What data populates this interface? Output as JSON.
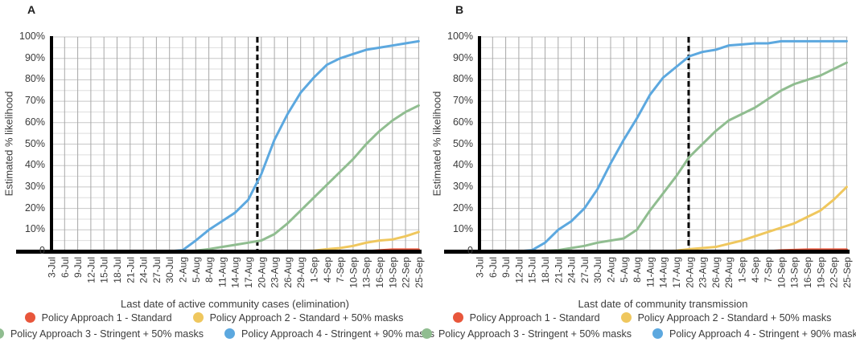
{
  "page": {
    "background": "#ffffff"
  },
  "colors": {
    "policy1_red": "#E8563B",
    "policy2_yellow": "#EFC75E",
    "policy3_green": "#90BD90",
    "policy4_blue": "#5CA8DF",
    "gridline_vertical": "#A8A8A8",
    "gridline_major": "#C7C7C7",
    "gridline_minor": "#DEDEDE",
    "axis": "#000000"
  },
  "chart_data": [
    {
      "type": "line",
      "title": "A",
      "xlabel": "Last date of active community cases (elimination)",
      "ylabel": "Estimated % likelihood",
      "ylim": [
        0,
        100
      ],
      "grid": true,
      "legend_position": "bottom",
      "y_tick_labels": [
        "100%",
        "90%",
        "80%",
        "70%",
        "60%",
        "50%",
        "40%",
        "30%",
        "20%",
        "10%",
        "0"
      ],
      "categories": [
        "3-Jul",
        "6-Jul",
        "9-Jul",
        "12-Jul",
        "15-Jul",
        "18-Jul",
        "21-Jul",
        "24-Jul",
        "27-Jul",
        "30-Jul",
        "2-Aug",
        "5-Aug",
        "8-Aug",
        "11-Aug",
        "14-Aug",
        "17-Aug",
        "20-Aug",
        "23-Aug",
        "26-Aug",
        "29-Aug",
        "1-Sep",
        "4-Sep",
        "7-Sep",
        "10-Sep",
        "13-Sep",
        "16-Sep",
        "19-Sep",
        "22-Sep",
        "25-Sep"
      ],
      "solid_vline_index": 0,
      "dashed_vline_index": 15.7,
      "series": [
        {
          "name": "Policy Approach 1 - Standard",
          "color": "#E8563B",
          "values": [
            0,
            0,
            0,
            0,
            0,
            0,
            0,
            0,
            0,
            0,
            0,
            0,
            0,
            0,
            0,
            0,
            0,
            0,
            0,
            0,
            0,
            0,
            0,
            0,
            0,
            0.4,
            0.8,
            0.8,
            0.8
          ]
        },
        {
          "name": "Policy Approach 2 - Standard + 50% masks",
          "color": "#EFC75E",
          "values": [
            0,
            0,
            0,
            0,
            0,
            0,
            0,
            0,
            0,
            0,
            0,
            0,
            0,
            0,
            0,
            0,
            0,
            0,
            0,
            0,
            0.3,
            1,
            1.5,
            2.5,
            4,
            5,
            5.5,
            7,
            9
          ]
        },
        {
          "name": "Policy Approach 3 - Stringent + 50% masks",
          "color": "#90BD90",
          "values": [
            0,
            0,
            0,
            0,
            0,
            0,
            0,
            0,
            0,
            0,
            0,
            0.3,
            1,
            2,
            3,
            4,
            5,
            8,
            13,
            19,
            25,
            31,
            37,
            43,
            50,
            56,
            61,
            65,
            68
          ]
        },
        {
          "name": "Policy Approach 4 - Stringent + 90% masks",
          "color": "#5CA8DF",
          "values": [
            0,
            0,
            0,
            0,
            0,
            0,
            0,
            0,
            0,
            0,
            0.5,
            5,
            10,
            14,
            18,
            24,
            36,
            52,
            64,
            74,
            81,
            87,
            90,
            92,
            94,
            95,
            96,
            97,
            98
          ]
        }
      ]
    },
    {
      "type": "line",
      "title": "B",
      "xlabel": "Last date of community transmission",
      "ylabel": "Estimated % likelihood",
      "ylim": [
        0,
        100
      ],
      "grid": true,
      "legend_position": "bottom",
      "y_tick_labels": [
        "100%",
        "90%",
        "80%",
        "70%",
        "60%",
        "50%",
        "40%",
        "30%",
        "20%",
        "10%",
        "0"
      ],
      "categories": [
        "3-Jul",
        "6-Jul",
        "9-Jul",
        "12-Jul",
        "15-Jul",
        "18-Jul",
        "21-Jul",
        "24-Jul",
        "27-Jul",
        "30-Jul",
        "2-Aug",
        "5-Aug",
        "8-Aug",
        "11-Aug",
        "14-Aug",
        "17-Aug",
        "20-Aug",
        "23-Aug",
        "26-Aug",
        "29-Aug",
        "1-Sep",
        "4-Sep",
        "7-Sep",
        "10-Sep",
        "13-Sep",
        "16-Sep",
        "19-Sep",
        "22-Sep",
        "25-Sep"
      ],
      "solid_vline_index": 0,
      "dashed_vline_index": 15.95,
      "series": [
        {
          "name": "Policy Approach 1 - Standard",
          "color": "#E8563B",
          "values": [
            0,
            0,
            0,
            0,
            0,
            0,
            0,
            0,
            0,
            0,
            0,
            0,
            0,
            0,
            0,
            0,
            0,
            0,
            0,
            0,
            0,
            0,
            0,
            0.4,
            0.6,
            0.8,
            0.8,
            0.8,
            0.8
          ]
        },
        {
          "name": "Policy Approach 2 - Standard + 50% masks",
          "color": "#EFC75E",
          "values": [
            0,
            0,
            0,
            0,
            0,
            0,
            0,
            0,
            0,
            0,
            0,
            0,
            0,
            0,
            0,
            0.3,
            1,
            1.5,
            2,
            3.5,
            5,
            7,
            9,
            11,
            13,
            16,
            19,
            24,
            30
          ]
        },
        {
          "name": "Policy Approach 3 - Stringent + 50% masks",
          "color": "#90BD90",
          "values": [
            0,
            0,
            0,
            0,
            0,
            0.2,
            0.5,
            1.5,
            2.5,
            4,
            5,
            6,
            10,
            19,
            27,
            35,
            44,
            50,
            56,
            61,
            64,
            67,
            71,
            75,
            78,
            80,
            82,
            85,
            88
          ]
        },
        {
          "name": "Policy Approach 4 - Stringent + 90% masks",
          "color": "#5CA8DF",
          "values": [
            0,
            0,
            0,
            0,
            0.5,
            4,
            10,
            14,
            20,
            29,
            41,
            52,
            62,
            73,
            81,
            86,
            91,
            93,
            94,
            96,
            96.5,
            97,
            97,
            98,
            98,
            98,
            98,
            98,
            98
          ]
        }
      ]
    }
  ]
}
